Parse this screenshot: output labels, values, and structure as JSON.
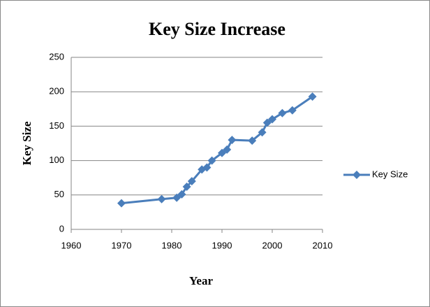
{
  "chart_data": {
    "type": "scatter-line",
    "title": "Key Size Increase",
    "x_label": "Year",
    "y_label": "Key Size",
    "series": [
      {
        "name": "Key Size",
        "color": "#4a7ebb",
        "x": [
          1970,
          1978,
          1981,
          1982,
          1983,
          1984,
          1986,
          1987,
          1988,
          1990,
          1991,
          1992,
          1996,
          1998,
          1999,
          2000,
          2002,
          2004,
          2008
        ],
        "values": [
          38,
          44,
          46,
          51,
          62,
          70,
          87,
          90,
          100,
          111,
          116,
          130,
          129,
          141,
          155,
          160,
          169,
          173,
          193
        ]
      }
    ],
    "xlim": [
      1960,
      2010
    ],
    "xticks": [
      1960,
      1970,
      1980,
      1990,
      2000,
      2010
    ],
    "ylim": [
      0,
      250
    ],
    "yticks": [
      0,
      50,
      100,
      150,
      200,
      250
    ],
    "grid": true,
    "legend": "right"
  }
}
